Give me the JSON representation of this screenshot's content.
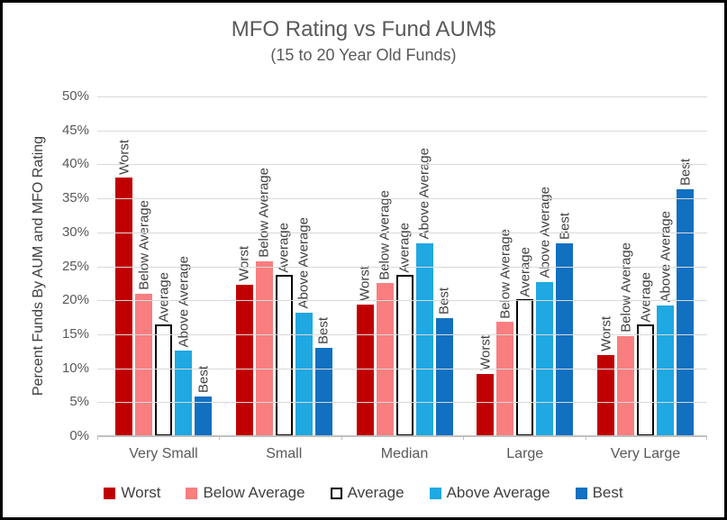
{
  "chart_data": {
    "type": "bar",
    "title": "MFO Rating vs Fund AUM$",
    "subtitle": "(15 to 20 Year Old Funds)",
    "ylabel": "Percent Funds By AUM and MFO Rating",
    "xlabel": "",
    "ylim": [
      0,
      50
    ],
    "ytick_step": 5,
    "yticks": [
      "50%",
      "45%",
      "40%",
      "35%",
      "30%",
      "25%",
      "20%",
      "15%",
      "10%",
      "5%",
      "0%"
    ],
    "grid": true,
    "legend_position": "bottom",
    "bar_labels": "series name rotated above each bar",
    "categories": [
      "Very Small",
      "Small",
      "Median",
      "Large",
      "Very Large"
    ],
    "series": [
      {
        "name": "Worst",
        "color": "#C00000",
        "values": [
          38.0,
          22.3,
          19.4,
          9.2,
          12.0
        ]
      },
      {
        "name": "Below Average",
        "color": "#F87E80",
        "values": [
          21.0,
          25.7,
          22.5,
          16.8,
          14.7
        ]
      },
      {
        "name": "Average",
        "color": "#FFFFFF",
        "border": "#000000",
        "values": [
          16.5,
          23.8,
          23.8,
          20.2,
          16.5
        ]
      },
      {
        "name": "Above Average",
        "color": "#1FA8E1",
        "values": [
          12.6,
          18.2,
          28.4,
          22.7,
          19.2
        ]
      },
      {
        "name": "Best",
        "color": "#1170C0",
        "values": [
          5.9,
          13.0,
          17.4,
          28.4,
          36.4
        ]
      }
    ],
    "colors": {
      "gridline": "#D9D9D9",
      "axis_line": "#BFBFBF",
      "title_text": "#595959",
      "tick_text": "#595959",
      "label_text": "#404040",
      "page_border": "#000000",
      "background": "#FFFFFF"
    }
  }
}
